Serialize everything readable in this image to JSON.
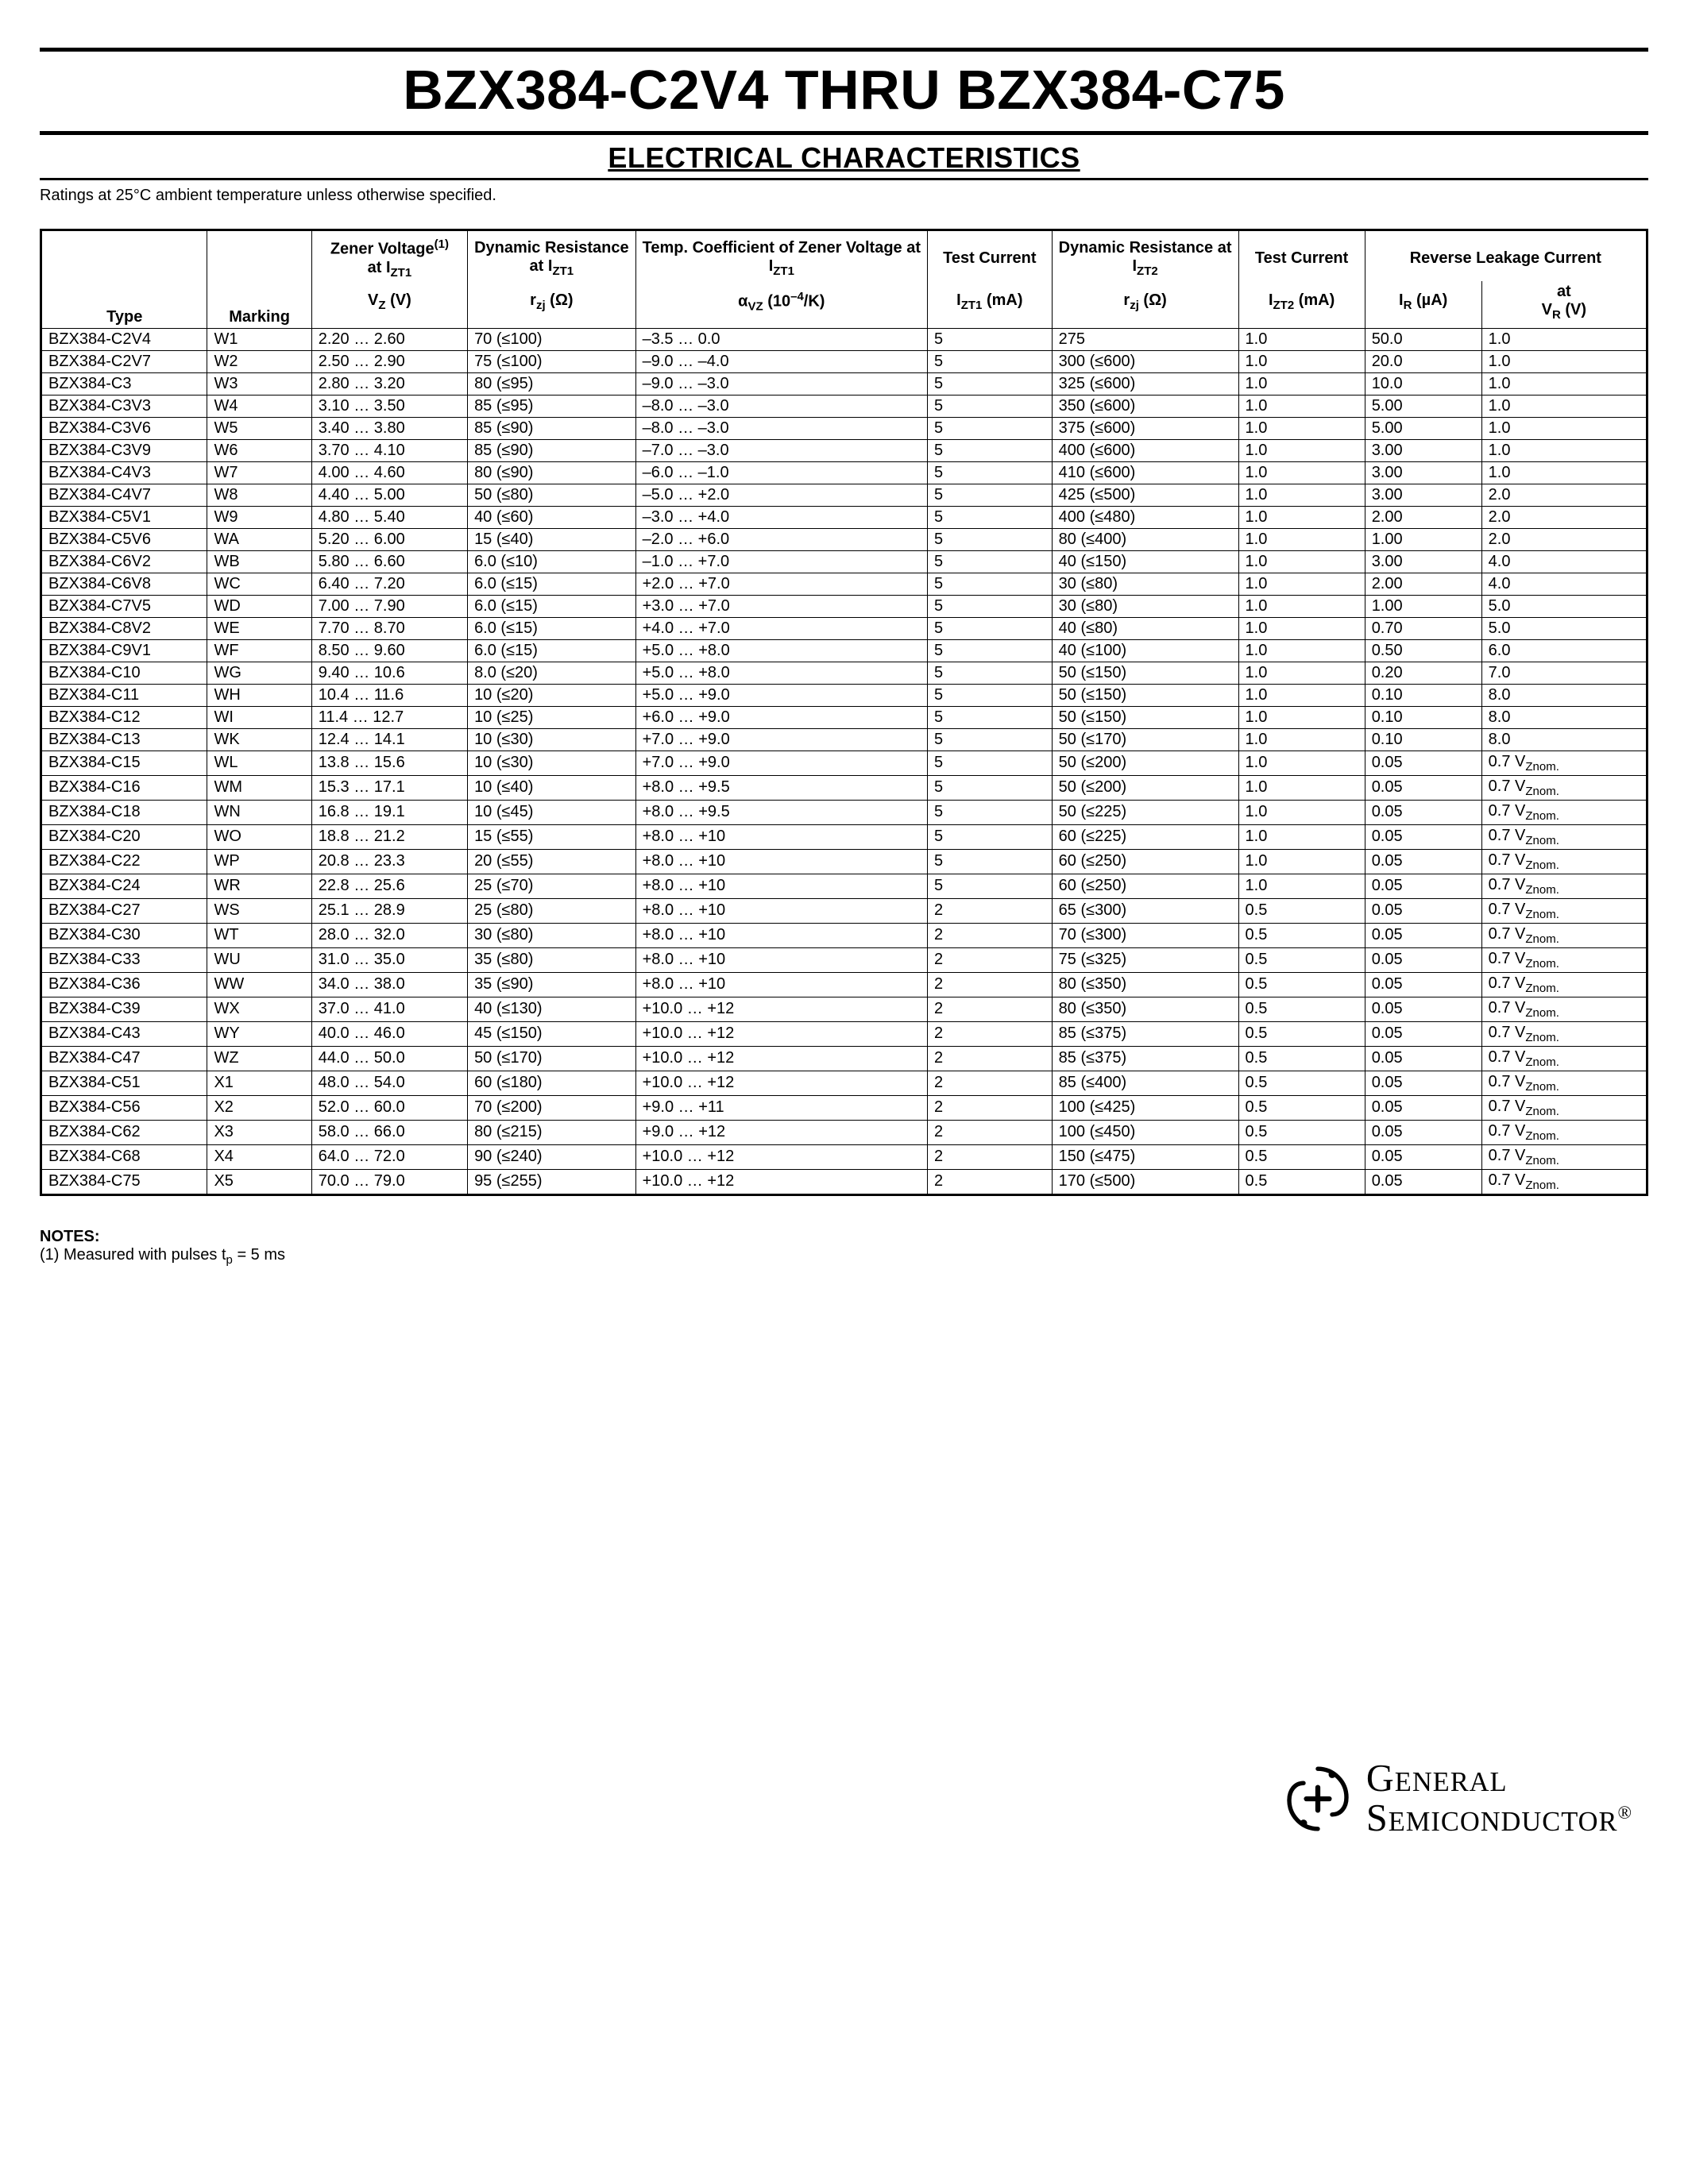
{
  "title": "BZX384-C2V4 THRU BZX384-C75",
  "subtitle": "ELECTRICAL CHARACTERISTICS",
  "ratings_note": "Ratings at 25°C ambient temperature unless otherwise specified.",
  "headers_group": {
    "zener_voltage": "Zener Voltage",
    "zener_voltage_note": "(1)",
    "zener_voltage_at": "at I",
    "dynamic_resistance": "Dynamic Resistance",
    "dynamic_resistance_at": "at I",
    "temp_coeff": "Temp. Coefficient of Zener Voltage at",
    "temp_coeff_at": "I",
    "test_current": "Test Current",
    "dynamic_resistance2": "Dynamic Resistance at",
    "dynamic_resistance2_at": "I",
    "test_current2": "Test Current",
    "reverse_leakage": "Reverse Leakage Current",
    "reverse_leakage_at": "at"
  },
  "headers_row2": {
    "type": "Type",
    "marking": "Marking",
    "vz": "V",
    "vz_sub": "Z",
    "vz_unit": " (V)",
    "rzj": "r",
    "rzj_sub": "zj",
    "rzj_unit": " (Ω)",
    "avz": "α",
    "avz_sub": "VZ",
    "avz_unit": " (10",
    "avz_exp": "–4",
    "avz_unit2": "/K)",
    "izt1": "I",
    "izt1_sub": "ZT1",
    "izt1_unit": " (mA)",
    "rzj2": "r",
    "rzj2_sub": "zj",
    "rzj2_unit": " (Ω)",
    "izt2": "I",
    "izt2_sub": "ZT2",
    "izt2_unit": " (mA)",
    "ir": "I",
    "ir_sub": "R",
    "ir_unit": " (µA)",
    "vr": "V",
    "vr_sub": "R",
    "vr_unit": " (V)"
  },
  "vznom_suffix": "Znom.",
  "rows": [
    {
      "type": "BZX384-C2V4",
      "mark": "W1",
      "vz": "2.20 … 2.60",
      "rzj": "70 (≤100)",
      "avz": "–3.5 … 0.0",
      "izt1": "5",
      "rzj2": "275",
      "izt2": "1.0",
      "ir": "50.0",
      "vr": "1.0",
      "vr_vznom": false
    },
    {
      "type": "BZX384-C2V7",
      "mark": "W2",
      "vz": "2.50 … 2.90",
      "rzj": "75 (≤100)",
      "avz": "–9.0 … –4.0",
      "izt1": "5",
      "rzj2": "300 (≤600)",
      "izt2": "1.0",
      "ir": "20.0",
      "vr": "1.0",
      "vr_vznom": false
    },
    {
      "type": "BZX384-C3",
      "mark": "W3",
      "vz": "2.80 … 3.20",
      "rzj": "80 (≤95)",
      "avz": "–9.0 … –3.0",
      "izt1": "5",
      "rzj2": "325 (≤600)",
      "izt2": "1.0",
      "ir": "10.0",
      "vr": "1.0",
      "vr_vznom": false
    },
    {
      "type": "BZX384-C3V3",
      "mark": "W4",
      "vz": "3.10 … 3.50",
      "rzj": "85 (≤95)",
      "avz": "–8.0 … –3.0",
      "izt1": "5",
      "rzj2": "350 (≤600)",
      "izt2": "1.0",
      "ir": "5.00",
      "vr": "1.0",
      "vr_vznom": false
    },
    {
      "type": "BZX384-C3V6",
      "mark": "W5",
      "vz": "3.40 … 3.80",
      "rzj": "85 (≤90)",
      "avz": "–8.0 … –3.0",
      "izt1": "5",
      "rzj2": "375 (≤600)",
      "izt2": "1.0",
      "ir": "5.00",
      "vr": "1.0",
      "vr_vznom": false
    },
    {
      "type": "BZX384-C3V9",
      "mark": "W6",
      "vz": "3.70 … 4.10",
      "rzj": "85 (≤90)",
      "avz": "–7.0 … –3.0",
      "izt1": "5",
      "rzj2": "400 (≤600)",
      "izt2": "1.0",
      "ir": "3.00",
      "vr": "1.0",
      "vr_vznom": false
    },
    {
      "type": "BZX384-C4V3",
      "mark": "W7",
      "vz": "4.00 … 4.60",
      "rzj": "80 (≤90)",
      "avz": "–6.0 … –1.0",
      "izt1": "5",
      "rzj2": "410 (≤600)",
      "izt2": "1.0",
      "ir": "3.00",
      "vr": "1.0",
      "vr_vznom": false
    },
    {
      "type": "BZX384-C4V7",
      "mark": "W8",
      "vz": "4.40 … 5.00",
      "rzj": "50 (≤80)",
      "avz": "–5.0 … +2.0",
      "izt1": "5",
      "rzj2": "425 (≤500)",
      "izt2": "1.0",
      "ir": "3.00",
      "vr": "2.0",
      "vr_vznom": false
    },
    {
      "type": "BZX384-C5V1",
      "mark": "W9",
      "vz": "4.80 … 5.40",
      "rzj": "40 (≤60)",
      "avz": "–3.0 … +4.0",
      "izt1": "5",
      "rzj2": "400 (≤480)",
      "izt2": "1.0",
      "ir": "2.00",
      "vr": "2.0",
      "vr_vznom": false
    },
    {
      "type": "BZX384-C5V6",
      "mark": "WA",
      "vz": "5.20 … 6.00",
      "rzj": "15 (≤40)",
      "avz": "–2.0 … +6.0",
      "izt1": "5",
      "rzj2": "80 (≤400)",
      "izt2": "1.0",
      "ir": "1.00",
      "vr": "2.0",
      "vr_vznom": false
    },
    {
      "type": "BZX384-C6V2",
      "mark": "WB",
      "vz": "5.80 … 6.60",
      "rzj": "6.0 (≤10)",
      "avz": "–1.0 … +7.0",
      "izt1": "5",
      "rzj2": "40 (≤150)",
      "izt2": "1.0",
      "ir": "3.00",
      "vr": "4.0",
      "vr_vznom": false
    },
    {
      "type": "BZX384-C6V8",
      "mark": "WC",
      "vz": "6.40 … 7.20",
      "rzj": "6.0 (≤15)",
      "avz": "+2.0 … +7.0",
      "izt1": "5",
      "rzj2": "30 (≤80)",
      "izt2": "1.0",
      "ir": "2.00",
      "vr": "4.0",
      "vr_vznom": false
    },
    {
      "type": "BZX384-C7V5",
      "mark": "WD",
      "vz": "7.00 … 7.90",
      "rzj": "6.0 (≤15)",
      "avz": "+3.0 … +7.0",
      "izt1": "5",
      "rzj2": "30 (≤80)",
      "izt2": "1.0",
      "ir": "1.00",
      "vr": "5.0",
      "vr_vznom": false
    },
    {
      "type": "BZX384-C8V2",
      "mark": "WE",
      "vz": "7.70 … 8.70",
      "rzj": "6.0 (≤15)",
      "avz": "+4.0 … +7.0",
      "izt1": "5",
      "rzj2": "40 (≤80)",
      "izt2": "1.0",
      "ir": "0.70",
      "vr": "5.0",
      "vr_vznom": false
    },
    {
      "type": "BZX384-C9V1",
      "mark": "WF",
      "vz": "8.50 … 9.60",
      "rzj": "6.0 (≤15)",
      "avz": "+5.0 … +8.0",
      "izt1": "5",
      "rzj2": "40 (≤100)",
      "izt2": "1.0",
      "ir": "0.50",
      "vr": "6.0",
      "vr_vznom": false
    },
    {
      "type": "BZX384-C10",
      "mark": "WG",
      "vz": "9.40 … 10.6",
      "rzj": "8.0 (≤20)",
      "avz": "+5.0 … +8.0",
      "izt1": "5",
      "rzj2": "50 (≤150)",
      "izt2": "1.0",
      "ir": "0.20",
      "vr": "7.0",
      "vr_vznom": false
    },
    {
      "type": "BZX384-C11",
      "mark": "WH",
      "vz": "10.4 … 11.6",
      "rzj": "10 (≤20)",
      "avz": "+5.0 … +9.0",
      "izt1": "5",
      "rzj2": "50 (≤150)",
      "izt2": "1.0",
      "ir": "0.10",
      "vr": "8.0",
      "vr_vznom": false
    },
    {
      "type": "BZX384-C12",
      "mark": "WI",
      "vz": "11.4 … 12.7",
      "rzj": "10 (≤25)",
      "avz": "+6.0 … +9.0",
      "izt1": "5",
      "rzj2": "50 (≤150)",
      "izt2": "1.0",
      "ir": "0.10",
      "vr": "8.0",
      "vr_vznom": false
    },
    {
      "type": "BZX384-C13",
      "mark": "WK",
      "vz": "12.4 … 14.1",
      "rzj": "10 (≤30)",
      "avz": "+7.0 … +9.0",
      "izt1": "5",
      "rzj2": "50 (≤170)",
      "izt2": "1.0",
      "ir": "0.10",
      "vr": "8.0",
      "vr_vznom": false
    },
    {
      "type": "BZX384-C15",
      "mark": "WL",
      "vz": "13.8 … 15.6",
      "rzj": "10 (≤30)",
      "avz": "+7.0 … +9.0",
      "izt1": "5",
      "rzj2": "50 (≤200)",
      "izt2": "1.0",
      "ir": "0.05",
      "vr": "0.7 V",
      "vr_vznom": true
    },
    {
      "type": "BZX384-C16",
      "mark": "WM",
      "vz": "15.3 … 17.1",
      "rzj": "10 (≤40)",
      "avz": "+8.0 … +9.5",
      "izt1": "5",
      "rzj2": "50 (≤200)",
      "izt2": "1.0",
      "ir": "0.05",
      "vr": "0.7 V",
      "vr_vznom": true
    },
    {
      "type": "BZX384-C18",
      "mark": "WN",
      "vz": "16.8 … 19.1",
      "rzj": "10 (≤45)",
      "avz": "+8.0 … +9.5",
      "izt1": "5",
      "rzj2": "50 (≤225)",
      "izt2": "1.0",
      "ir": "0.05",
      "vr": "0.7 V",
      "vr_vznom": true
    },
    {
      "type": "BZX384-C20",
      "mark": "WO",
      "vz": "18.8 … 21.2",
      "rzj": "15 (≤55)",
      "avz": "+8.0 … +10",
      "izt1": "5",
      "rzj2": "60 (≤225)",
      "izt2": "1.0",
      "ir": "0.05",
      "vr": "0.7 V",
      "vr_vznom": true
    },
    {
      "type": "BZX384-C22",
      "mark": "WP",
      "vz": "20.8 … 23.3",
      "rzj": "20 (≤55)",
      "avz": "+8.0 … +10",
      "izt1": "5",
      "rzj2": "60 (≤250)",
      "izt2": "1.0",
      "ir": "0.05",
      "vr": "0.7 V",
      "vr_vznom": true
    },
    {
      "type": "BZX384-C24",
      "mark": "WR",
      "vz": "22.8 … 25.6",
      "rzj": "25 (≤70)",
      "avz": "+8.0 … +10",
      "izt1": "5",
      "rzj2": "60 (≤250)",
      "izt2": "1.0",
      "ir": "0.05",
      "vr": "0.7 V",
      "vr_vznom": true
    },
    {
      "type": "BZX384-C27",
      "mark": "WS",
      "vz": "25.1 … 28.9",
      "rzj": "25 (≤80)",
      "avz": "+8.0 … +10",
      "izt1": "2",
      "rzj2": "65 (≤300)",
      "izt2": "0.5",
      "ir": "0.05",
      "vr": "0.7 V",
      "vr_vznom": true
    },
    {
      "type": "BZX384-C30",
      "mark": "WT",
      "vz": "28.0 … 32.0",
      "rzj": "30 (≤80)",
      "avz": "+8.0 … +10",
      "izt1": "2",
      "rzj2": "70 (≤300)",
      "izt2": "0.5",
      "ir": "0.05",
      "vr": "0.7 V",
      "vr_vznom": true
    },
    {
      "type": "BZX384-C33",
      "mark": "WU",
      "vz": "31.0 … 35.0",
      "rzj": "35 (≤80)",
      "avz": "+8.0 … +10",
      "izt1": "2",
      "rzj2": "75 (≤325)",
      "izt2": "0.5",
      "ir": "0.05",
      "vr": "0.7 V",
      "vr_vznom": true
    },
    {
      "type": "BZX384-C36",
      "mark": "WW",
      "vz": "34.0 … 38.0",
      "rzj": "35 (≤90)",
      "avz": "+8.0 … +10",
      "izt1": "2",
      "rzj2": "80 (≤350)",
      "izt2": "0.5",
      "ir": "0.05",
      "vr": "0.7 V",
      "vr_vznom": true
    },
    {
      "type": "BZX384-C39",
      "mark": "WX",
      "vz": "37.0 … 41.0",
      "rzj": "40 (≤130)",
      "avz": "+10.0 … +12",
      "izt1": "2",
      "rzj2": "80 (≤350)",
      "izt2": "0.5",
      "ir": "0.05",
      "vr": "0.7 V",
      "vr_vznom": true
    },
    {
      "type": "BZX384-C43",
      "mark": "WY",
      "vz": "40.0 … 46.0",
      "rzj": "45 (≤150)",
      "avz": "+10.0 … +12",
      "izt1": "2",
      "rzj2": "85 (≤375)",
      "izt2": "0.5",
      "ir": "0.05",
      "vr": "0.7 V",
      "vr_vznom": true
    },
    {
      "type": "BZX384-C47",
      "mark": "WZ",
      "vz": "44.0 … 50.0",
      "rzj": "50 (≤170)",
      "avz": "+10.0 … +12",
      "izt1": "2",
      "rzj2": "85 (≤375)",
      "izt2": "0.5",
      "ir": "0.05",
      "vr": "0.7 V",
      "vr_vznom": true
    },
    {
      "type": "BZX384-C51",
      "mark": "X1",
      "vz": "48.0 … 54.0",
      "rzj": "60 (≤180)",
      "avz": "+10.0 … +12",
      "izt1": "2",
      "rzj2": "85 (≤400)",
      "izt2": "0.5",
      "ir": "0.05",
      "vr": "0.7 V",
      "vr_vznom": true
    },
    {
      "type": "BZX384-C56",
      "mark": "X2",
      "vz": "52.0 … 60.0",
      "rzj": "70 (≤200)",
      "avz": "+9.0 … +11",
      "izt1": "2",
      "rzj2": "100 (≤425)",
      "izt2": "0.5",
      "ir": "0.05",
      "vr": "0.7 V",
      "vr_vznom": true
    },
    {
      "type": "BZX384-C62",
      "mark": "X3",
      "vz": "58.0 … 66.0",
      "rzj": "80 (≤215)",
      "avz": "+9.0 … +12",
      "izt1": "2",
      "rzj2": "100 (≤450)",
      "izt2": "0.5",
      "ir": "0.05",
      "vr": "0.7 V",
      "vr_vznom": true
    },
    {
      "type": "BZX384-C68",
      "mark": "X4",
      "vz": "64.0 … 72.0",
      "rzj": "90 (≤240)",
      "avz": "+10.0 … +12",
      "izt1": "2",
      "rzj2": "150 (≤475)",
      "izt2": "0.5",
      "ir": "0.05",
      "vr": "0.7 V",
      "vr_vznom": true
    },
    {
      "type": "BZX384-C75",
      "mark": "X5",
      "vz": "70.0 … 79.0",
      "rzj": "95 (≤255)",
      "avz": "+10.0 … +12",
      "izt1": "2",
      "rzj2": "170 (≤500)",
      "izt2": "0.5",
      "ir": "0.05",
      "vr": "0.7 V",
      "vr_vznom": true
    }
  ],
  "notes": {
    "title": "NOTES:",
    "n1_prefix": "(1) Measured with pulses t",
    "n1_sub": "p",
    "n1_suffix": " = 5 ms"
  },
  "company": {
    "line1": "General",
    "line2": "Semiconductor",
    "reg": "®"
  }
}
